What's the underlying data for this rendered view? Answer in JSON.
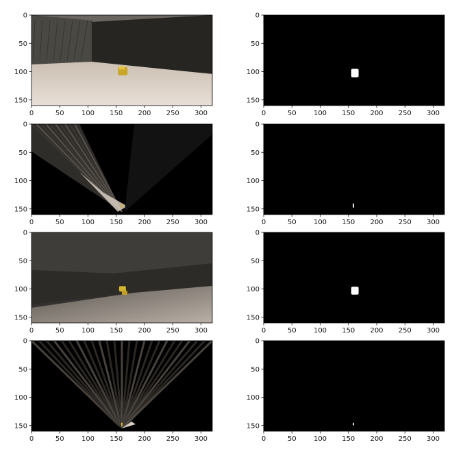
{
  "chart_data": {
    "type": "image_grid",
    "rows": 4,
    "cols": 2,
    "x_ticks": [
      0,
      50,
      100,
      150,
      200,
      250,
      300
    ],
    "y_ticks": [
      0,
      50,
      100,
      150
    ],
    "xlim": [
      0,
      320
    ],
    "ylim": [
      160,
      0
    ],
    "panels": [
      {
        "id": "r1-left",
        "content": "camera image: rock sample on sandy ground",
        "kind": "camera"
      },
      {
        "id": "r1-right",
        "content": "threshold mask: sample blob",
        "kind": "mask",
        "blob": {
          "x": [
            155,
            168
          ],
          "y": [
            95,
            110
          ]
        }
      },
      {
        "id": "r2-left",
        "content": "perspective-warped view",
        "kind": "warped"
      },
      {
        "id": "r2-right",
        "content": "warped mask: sample pixels",
        "kind": "mask",
        "blob": {
          "x": [
            158,
            160
          ],
          "y": [
            140,
            148
          ]
        }
      },
      {
        "id": "r3-left",
        "content": "camera image: rock sample near wall",
        "kind": "camera"
      },
      {
        "id": "r3-right",
        "content": "threshold mask: sample blob",
        "kind": "mask",
        "blob": {
          "x": [
            155,
            168
          ],
          "y": [
            96,
            110
          ]
        }
      },
      {
        "id": "r4-left",
        "content": "perspective-warped view",
        "kind": "warped"
      },
      {
        "id": "r4-right",
        "content": "warped mask: sample pixels",
        "kind": "mask",
        "blob": {
          "x": [
            158,
            160
          ],
          "y": [
            145,
            150
          ]
        }
      }
    ]
  }
}
